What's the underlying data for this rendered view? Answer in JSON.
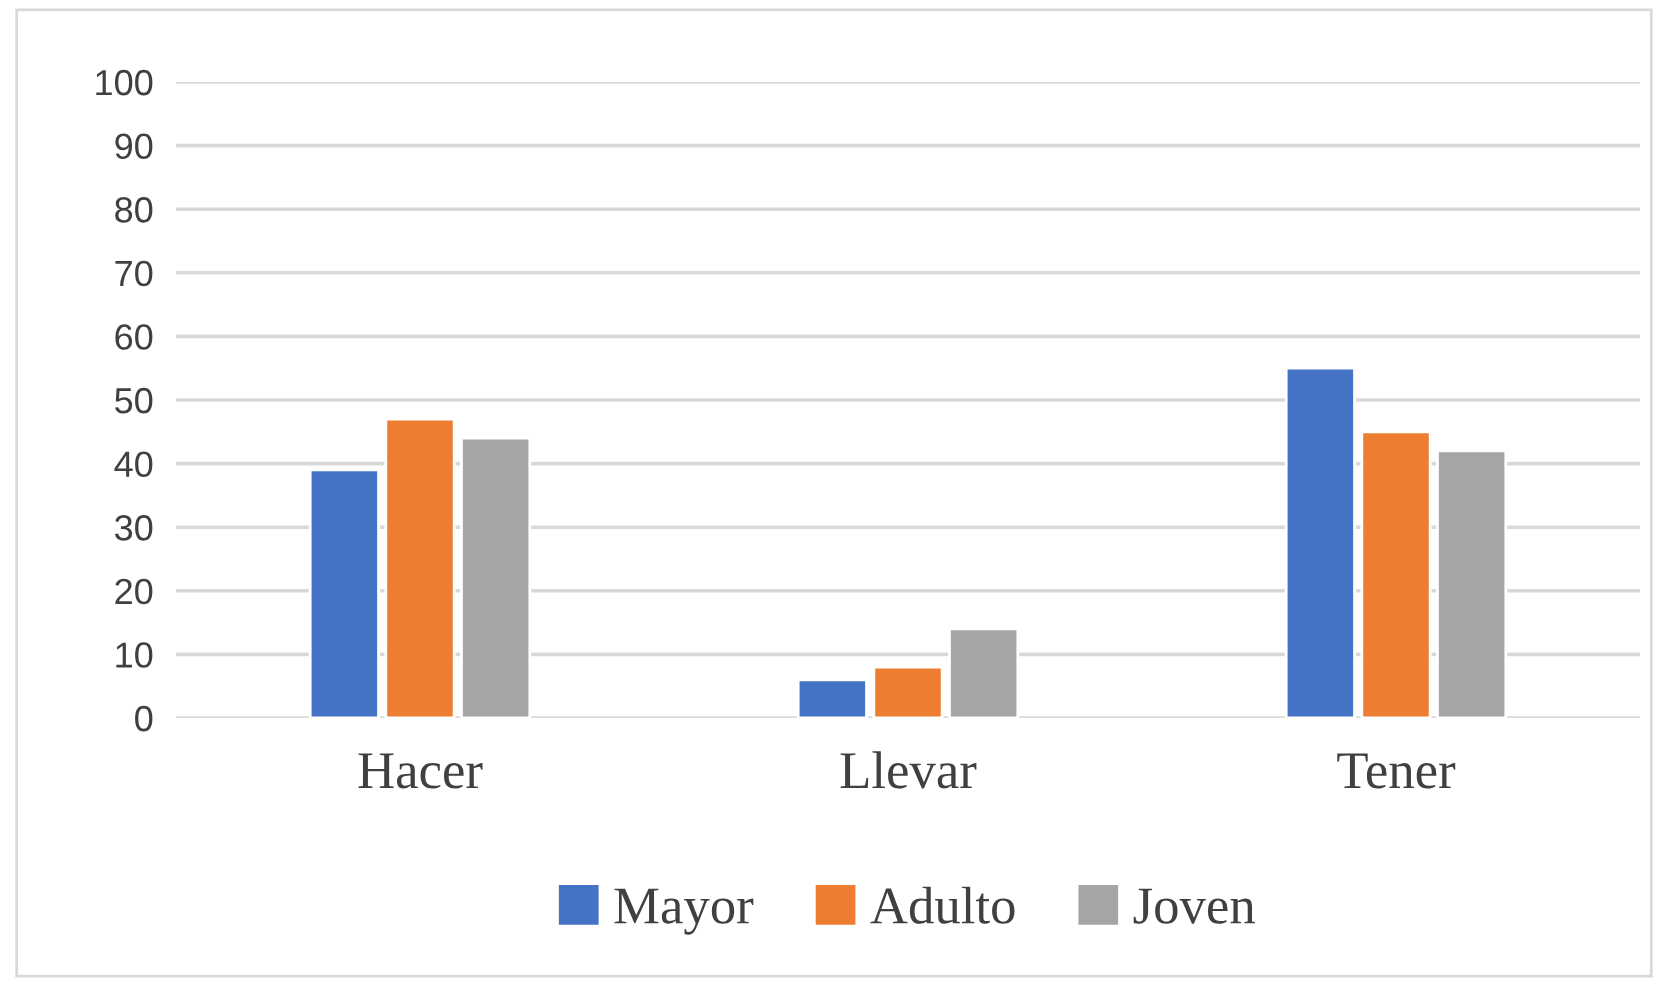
{
  "chart_data": {
    "type": "bar",
    "categories": [
      "Hacer",
      "Llevar",
      "Tener"
    ],
    "series": [
      {
        "name": "Mayor",
        "color": "#4472c4",
        "values": [
          39,
          6,
          55
        ]
      },
      {
        "name": "Adulto",
        "color": "#ed7d31",
        "values": [
          47,
          8,
          45
        ]
      },
      {
        "name": "Joven",
        "color": "#a5a5a5",
        "values": [
          44,
          14,
          42
        ]
      }
    ],
    "ylim": [
      0,
      100
    ],
    "yticks": [
      0,
      10,
      20,
      30,
      40,
      50,
      60,
      70,
      80,
      90,
      100
    ],
    "grid": "y",
    "legend": "bottom"
  }
}
